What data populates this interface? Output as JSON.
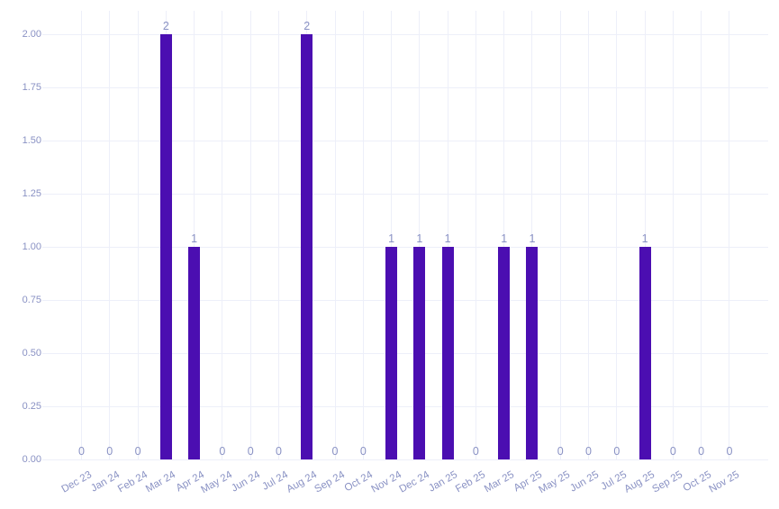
{
  "chart_data": {
    "type": "bar",
    "title": "",
    "xlabel": "",
    "ylabel": "",
    "legend": "none",
    "grid": true,
    "value_labels_shown": true,
    "categories": [
      "Dec 23",
      "Jan 24",
      "Feb 24",
      "Mar 24",
      "Apr 24",
      "May 24",
      "Jun 24",
      "Jul 24",
      "Aug 24",
      "Sep 24",
      "Oct 24",
      "Nov 24",
      "Dec 24",
      "Jan 25",
      "Feb 25",
      "Mar 25",
      "Apr 25",
      "May 25",
      "Jun 25",
      "Jul 25",
      "Aug 25",
      "Sep 25",
      "Oct 25",
      "Nov 25"
    ],
    "values": [
      0,
      0,
      0,
      2,
      1,
      0,
      0,
      0,
      2,
      0,
      0,
      1,
      1,
      1,
      0,
      1,
      1,
      0,
      0,
      0,
      1,
      0,
      0,
      0
    ],
    "ytick_labels": [
      "0.00",
      "0.25",
      "0.50",
      "0.75",
      "1.00",
      "1.25",
      "1.50",
      "1.75",
      "2.00"
    ],
    "ylim": [
      0,
      2.11
    ],
    "colors": {
      "bar": "#4b0eb1",
      "axis_label": "#8a92c4",
      "grid": "#edeff9",
      "background": "#ffffff"
    }
  }
}
